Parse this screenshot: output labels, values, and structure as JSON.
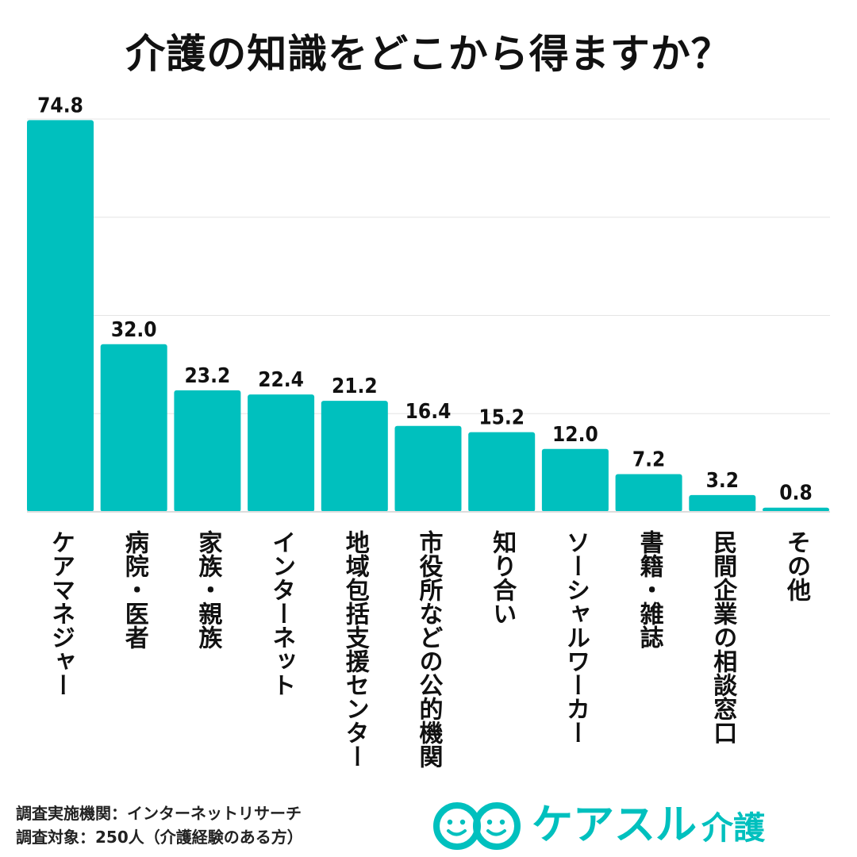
{
  "chart_data": {
    "type": "bar",
    "title": "介護の知識をどこから得ますか？",
    "categories": [
      "ケアマネジャー",
      "病院・医者",
      "家族・親族",
      "インターネット",
      "地域包括支援センター",
      "市役所などの公的機関",
      "知り合い",
      "ソーシャルワーカー",
      "書籍・雑誌",
      "民間企業の相談窓口",
      "その他"
    ],
    "values": [
      74.8,
      32.0,
      23.2,
      22.4,
      21.2,
      16.4,
      15.2,
      12.0,
      7.2,
      3.2,
      0.8
    ],
    "value_labels": [
      "74.8",
      "32.0",
      "23.2",
      "22.4",
      "21.2",
      "16.4",
      "15.2",
      "12.0",
      "7.2",
      "3.2",
      "0.8"
    ],
    "ylim": [
      0,
      75
    ],
    "grid": true,
    "bar_color": "#00c0be"
  },
  "footer": {
    "line1": "調査実施機関：インターネットリサーチ",
    "line2": "調査対象：250人（介護経験のある方）"
  },
  "brand": {
    "name": "ケアスル",
    "sub": "介護",
    "color": "#00c0be",
    "icon": "smiling-faces-logo-icon"
  }
}
